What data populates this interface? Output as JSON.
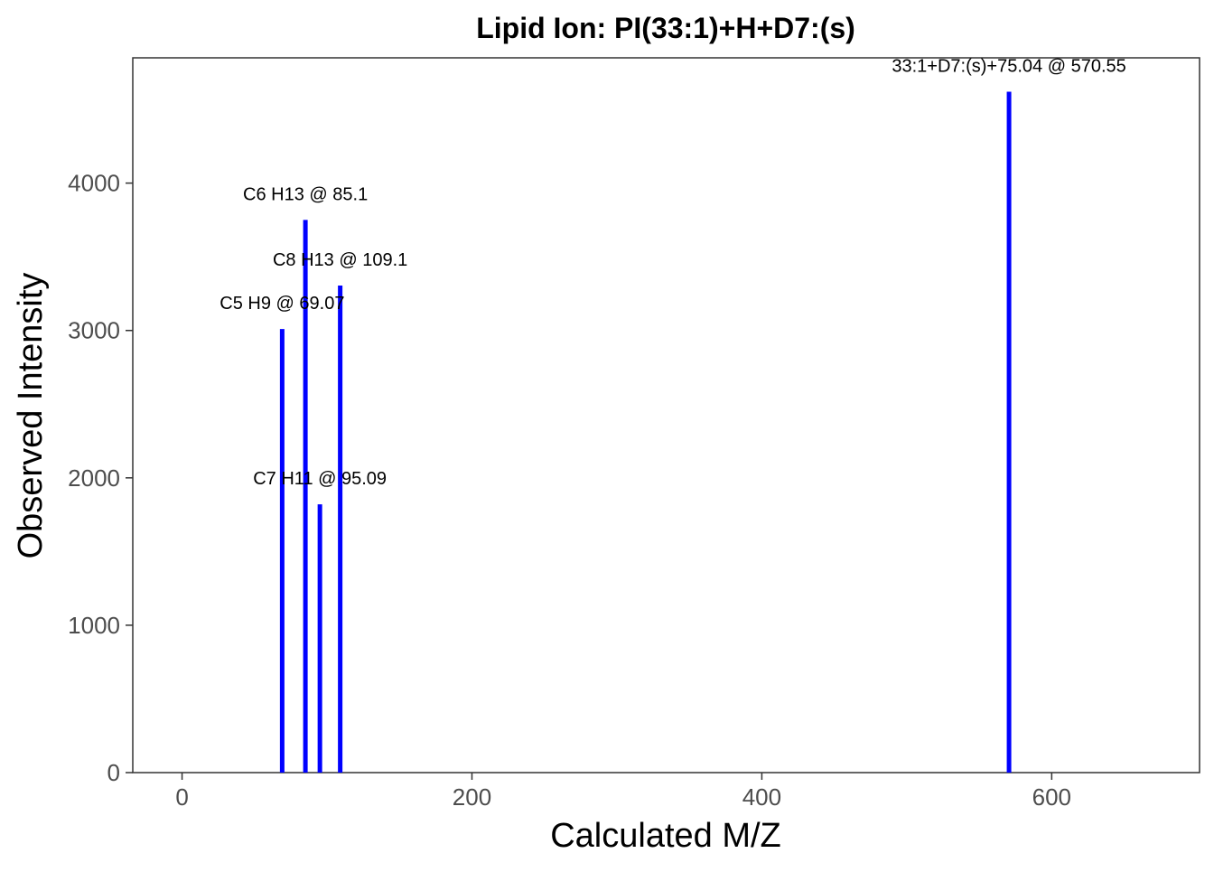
{
  "chart_data": {
    "type": "bar",
    "title": "Lipid Ion: PI(33:1)+H+D7:(s)",
    "xlabel": "Calculated M/Z",
    "ylabel": "Observed Intensity",
    "xlim": [
      -34,
      702
    ],
    "ylim": [
      0,
      4850
    ],
    "xticks": [
      0,
      200,
      400,
      600
    ],
    "yticks": [
      0,
      1000,
      2000,
      3000,
      4000
    ],
    "grid": false,
    "bar_color": "#0000ff",
    "peaks": [
      {
        "x": 69.07,
        "y": 3010,
        "label": "C5 H9 @ 69.07"
      },
      {
        "x": 85.1,
        "y": 3750,
        "label": "C6 H13 @ 85.1"
      },
      {
        "x": 95.09,
        "y": 1820,
        "label": "C7 H11 @ 95.09"
      },
      {
        "x": 109.1,
        "y": 3305,
        "label": "C8 H13 @ 109.1"
      },
      {
        "x": 570.55,
        "y": 4620,
        "label": "33:1+D7:(s)+75.04 @ 570.55"
      }
    ]
  }
}
